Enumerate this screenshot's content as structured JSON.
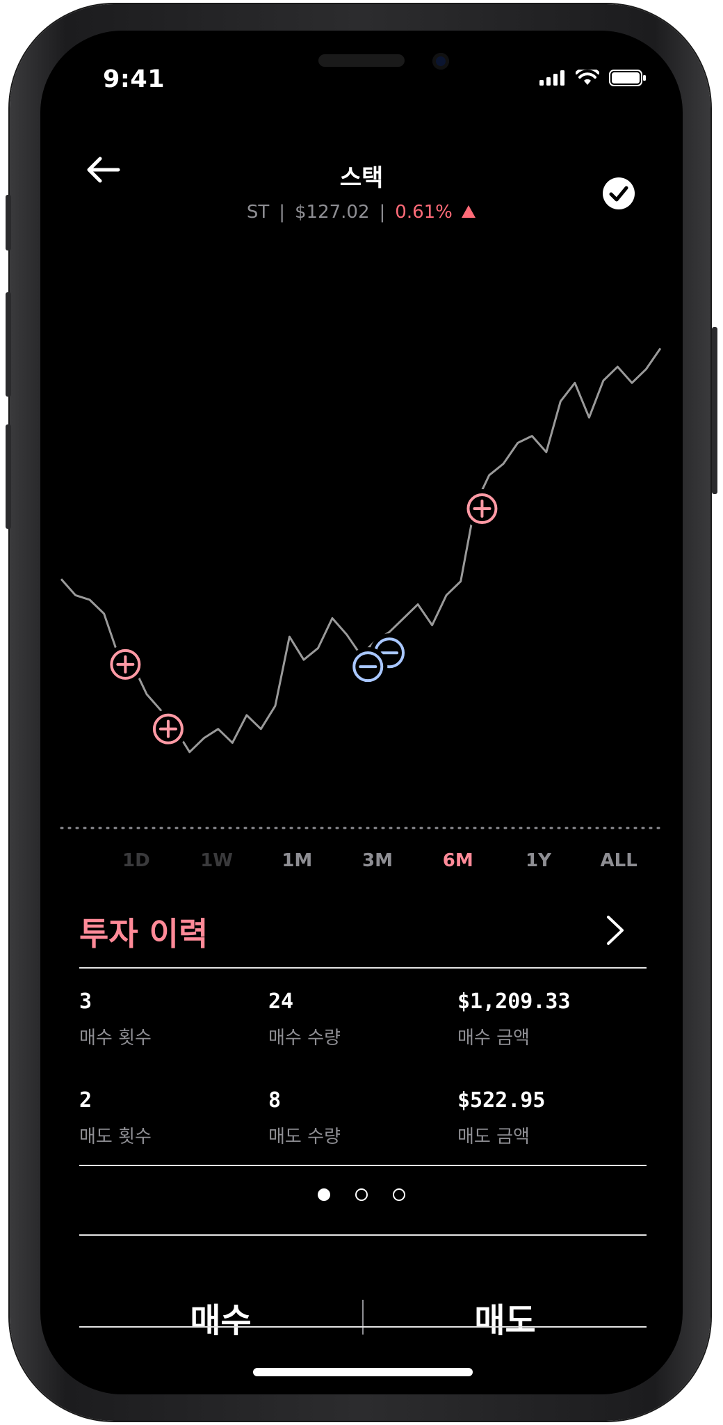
{
  "status_bar": {
    "time": "9:41"
  },
  "header": {
    "title": "스택",
    "ticker": "ST",
    "price": "$127.02",
    "change": "0.61%",
    "change_color": "#ff6b78",
    "back_icon": "arrow-left-icon",
    "confirm_icon": "check-circle-icon"
  },
  "chart_data": {
    "type": "line",
    "title": "",
    "xlabel": "",
    "ylabel": "",
    "period": "6M",
    "line_color": "#9a9a9a",
    "buy_color": "#ff9aa5",
    "sell_color": "#a9c7ff",
    "values": [
      145,
      138,
      136,
      130,
      112,
      108,
      95,
      88,
      80,
      70,
      76,
      80,
      74,
      86,
      80,
      90,
      120,
      110,
      115,
      128,
      121,
      112,
      118,
      122,
      128,
      134,
      125,
      138,
      144,
      177,
      190,
      195,
      204,
      207,
      200,
      222,
      230,
      215,
      231,
      237,
      230,
      236,
      245
    ],
    "buy_markers": [
      {
        "index": 4.5,
        "offset": -2
      },
      {
        "index": 7.5,
        "offset": -4
      },
      {
        "index": 29.5,
        "offset": -8
      }
    ],
    "sell_markers": [
      {
        "index": 21.5,
        "offset": -8
      },
      {
        "index": 23,
        "offset": -9
      }
    ]
  },
  "periods": {
    "items": [
      "1D",
      "1W",
      "1M",
      "3M",
      "6M",
      "1Y",
      "ALL"
    ],
    "active": "6M",
    "active_color": "#ff8a98"
  },
  "history": {
    "title": "투자 이력",
    "stats": [
      {
        "value": "3",
        "label": "매수 횟수"
      },
      {
        "value": "24",
        "label": "매수 수량"
      },
      {
        "value": "$1,209.33",
        "label": "매수 금액"
      },
      {
        "value": "2",
        "label": "매도 횟수"
      },
      {
        "value": "8",
        "label": "매도 수량"
      },
      {
        "value": "$522.95",
        "label": "매도 금액"
      }
    ]
  },
  "pager": {
    "count": 3,
    "active": 0
  },
  "actions": {
    "buy": "매수",
    "sell": "매도"
  }
}
